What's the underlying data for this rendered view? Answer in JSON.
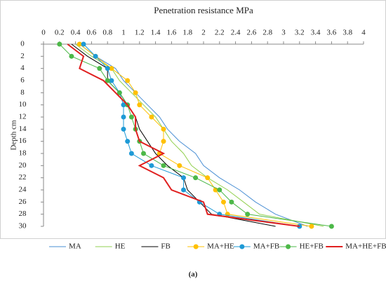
{
  "chart_data": {
    "type": "line",
    "title": "Penetration resistance MPa",
    "y_label": "Depth cm",
    "caption": "(a)",
    "y": [
      0,
      2,
      4,
      6,
      8,
      10,
      12,
      14,
      16,
      18,
      20,
      22,
      24,
      26,
      28,
      30
    ],
    "xlim": [
      0,
      4
    ],
    "xticks": [
      0,
      0.2,
      0.4,
      0.6,
      0.8,
      1,
      1.2,
      1.4,
      1.6,
      1.8,
      2,
      2.2,
      2.4,
      2.6,
      2.8,
      3,
      3.2,
      3.4,
      3.6,
      3.8,
      4
    ],
    "ylim": [
      0,
      30
    ],
    "yticks": [
      0,
      2,
      4,
      6,
      8,
      10,
      12,
      14,
      16,
      18,
      20,
      22,
      24,
      26,
      28,
      30
    ],
    "y_inverted": true,
    "legend": "bottom",
    "series": [
      {
        "name": "MA",
        "color": "#4a8fd4",
        "width": 1,
        "marker": false,
        "values": [
          0.45,
          0.65,
          0.9,
          1.0,
          1.15,
          1.3,
          1.45,
          1.55,
          1.7,
          1.9,
          2.0,
          2.2,
          2.45,
          2.65,
          2.9,
          3.3
        ]
      },
      {
        "name": "HE",
        "color": "#92d050",
        "width": 1,
        "marker": false,
        "values": [
          0.4,
          0.6,
          0.85,
          0.95,
          1.1,
          1.25,
          1.4,
          1.5,
          1.6,
          1.75,
          1.85,
          2.05,
          2.3,
          2.5,
          2.7,
          3.5
        ]
      },
      {
        "name": "FB",
        "color": "#000000",
        "width": 1,
        "marker": false,
        "values": [
          0.35,
          0.55,
          0.8,
          0.8,
          0.95,
          1.05,
          1.15,
          1.2,
          1.3,
          1.4,
          1.55,
          1.75,
          1.8,
          1.95,
          2.1,
          2.9
        ]
      },
      {
        "name": "MA+HE",
        "color": "#ffc000",
        "width": 1,
        "marker": true,
        "values": [
          0.45,
          0.65,
          0.85,
          1.05,
          1.15,
          1.2,
          1.35,
          1.5,
          1.5,
          1.45,
          1.7,
          2.05,
          2.15,
          2.25,
          2.3,
          3.35
        ]
      },
      {
        "name": "MA+FB",
        "color": "#1e9ad6",
        "width": 1,
        "marker": true,
        "values": [
          0.5,
          0.65,
          0.8,
          0.85,
          0.95,
          1.0,
          1.0,
          1.0,
          1.05,
          1.1,
          1.35,
          1.75,
          1.75,
          1.95,
          2.2,
          3.2
        ]
      },
      {
        "name": "HE+FB",
        "color": "#4cb848",
        "width": 1,
        "marker": true,
        "values": [
          0.2,
          0.35,
          0.7,
          0.8,
          0.95,
          1.05,
          1.1,
          1.15,
          1.2,
          1.25,
          1.5,
          1.9,
          2.2,
          2.35,
          2.55,
          3.6
        ]
      },
      {
        "name": "MA+HE+FB",
        "color": "#e02020",
        "width": 2,
        "marker": false,
        "values": [
          0.3,
          0.5,
          0.45,
          0.75,
          0.9,
          1.05,
          1.15,
          1.15,
          1.2,
          1.5,
          1.2,
          1.5,
          1.6,
          2.0,
          2.05,
          3.2
        ]
      }
    ]
  }
}
